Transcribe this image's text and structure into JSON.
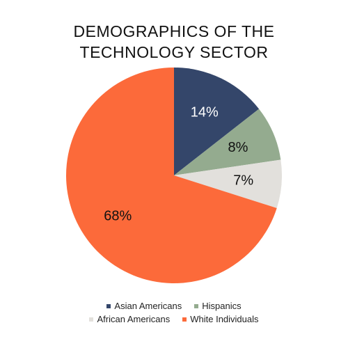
{
  "chart_data": {
    "type": "pie",
    "title_lines": [
      "DEMOGRAPHICS OF THE",
      "TECHNOLOGY SECTOR"
    ],
    "slices": [
      {
        "name": "Asian Americans",
        "value": 14,
        "label": "14%",
        "color": "#34466a",
        "label_color": "#ffffff"
      },
      {
        "name": "Hispanics",
        "value": 8,
        "label": "8%",
        "color": "#94ab8f",
        "label_color": "#111111"
      },
      {
        "name": "African Americans",
        "value": 7,
        "label": "7%",
        "color": "#e2e0dc",
        "label_color": "#111111"
      },
      {
        "name": "White Individuals",
        "value": 68,
        "label": "68%",
        "color": "#fc6a3a",
        "label_color": "#111111"
      }
    ],
    "legend_placement": "bottom"
  }
}
